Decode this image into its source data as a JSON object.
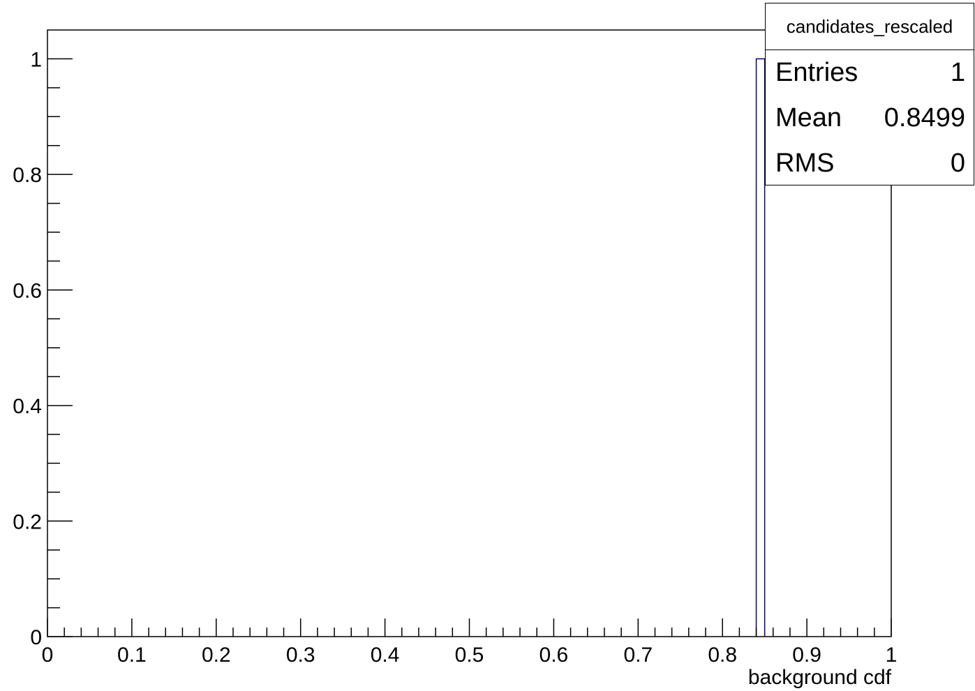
{
  "chart_data": {
    "type": "histogram",
    "xlabel": "background cdf",
    "ylabel": "",
    "xlim": [
      0,
      1
    ],
    "ylim": [
      0,
      1.05
    ],
    "x_ticks": [
      "0",
      "0.1",
      "0.2",
      "0.3",
      "0.4",
      "0.5",
      "0.6",
      "0.7",
      "0.8",
      "0.9",
      "1"
    ],
    "y_ticks": [
      "0",
      "0.2",
      "0.4",
      "0.6",
      "0.8",
      "1"
    ],
    "bins": [
      {
        "low": 0.84,
        "high": 0.85,
        "value": 1
      }
    ],
    "line_color": "#000080",
    "grid": false
  },
  "stats_box": {
    "title": "candidates_rescaled",
    "rows": [
      {
        "label": "Entries",
        "value": "1"
      },
      {
        "label": "Mean",
        "value": "0.8499"
      },
      {
        "label": "RMS",
        "value": "0"
      }
    ]
  }
}
